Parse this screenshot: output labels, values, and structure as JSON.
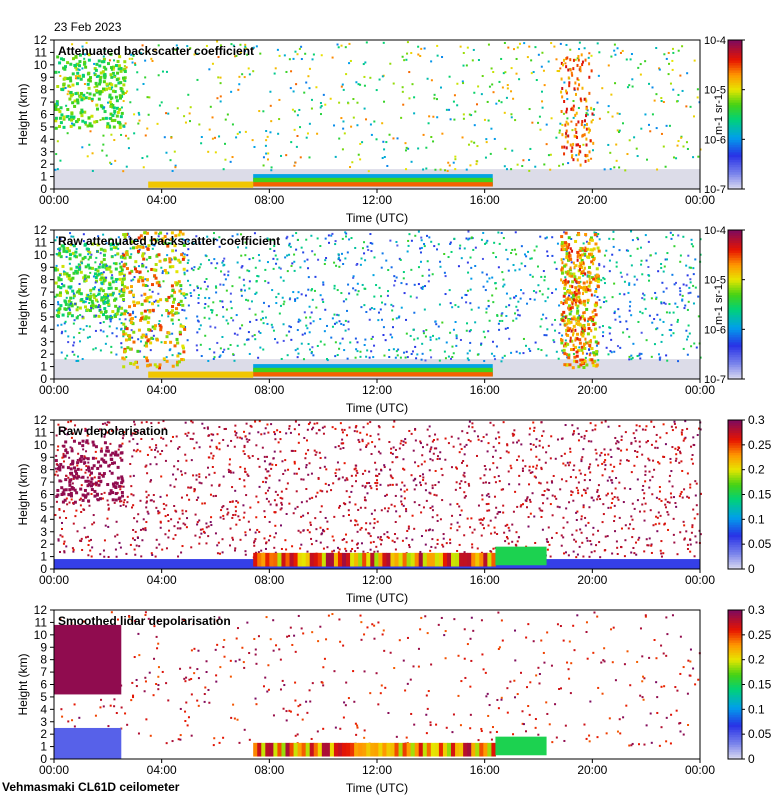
{
  "date_label": "23 Feb 2023",
  "footer": "Vehmasmaki CL61D ceilometer",
  "chart_data": [
    {
      "type": "heatmap",
      "title": "Attenuated backscatter coefficient",
      "xlabel": "Time (UTC)",
      "ylabel": "Height (km)",
      "x_ticks": [
        "00:00",
        "04:00",
        "08:00",
        "12:00",
        "16:00",
        "20:00",
        "00:00"
      ],
      "y_ticks": [
        "0",
        "1",
        "2",
        "3",
        "4",
        "5",
        "6",
        "7",
        "8",
        "9",
        "10",
        "11",
        "12"
      ],
      "ylim": [
        0,
        12
      ],
      "colorbar": {
        "scale": "log",
        "range": [
          1e-07,
          0.0001
        ],
        "ticks": [
          "10-7",
          "10-6",
          "10-5",
          "10-4"
        ],
        "unit": "m-1 sr-1",
        "colormap": "rainbow"
      }
    },
    {
      "type": "heatmap",
      "title": "Raw attenuated backscatter coefficient",
      "xlabel": "Time (UTC)",
      "ylabel": "Height (km)",
      "x_ticks": [
        "00:00",
        "04:00",
        "08:00",
        "12:00",
        "16:00",
        "20:00",
        "00:00"
      ],
      "y_ticks": [
        "0",
        "1",
        "2",
        "3",
        "4",
        "5",
        "6",
        "7",
        "8",
        "9",
        "10",
        "11",
        "12"
      ],
      "ylim": [
        0,
        12
      ],
      "colorbar": {
        "scale": "log",
        "range": [
          1e-07,
          0.0001
        ],
        "ticks": [
          "10-7",
          "10-6",
          "10-5",
          "10-4"
        ],
        "unit": "m-1 sr-1",
        "colormap": "rainbow"
      }
    },
    {
      "type": "heatmap",
      "title": "Raw depolarisation",
      "xlabel": "Time (UTC)",
      "ylabel": "Height (km)",
      "x_ticks": [
        "00:00",
        "04:00",
        "08:00",
        "12:00",
        "16:00",
        "20:00",
        "00:00"
      ],
      "y_ticks": [
        "0",
        "1",
        "2",
        "3",
        "4",
        "5",
        "6",
        "7",
        "8",
        "9",
        "10",
        "11",
        "12"
      ],
      "ylim": [
        0,
        12
      ],
      "colorbar": {
        "scale": "linear",
        "range": [
          0,
          0.3
        ],
        "ticks": [
          "0",
          "0.05",
          "0.1",
          "0.15",
          "0.2",
          "0.25",
          "0.3"
        ],
        "unit": "",
        "colormap": "rainbow"
      }
    },
    {
      "type": "heatmap",
      "title": "Smoothed lidar depolarisation",
      "xlabel": "Time (UTC)",
      "ylabel": "Height (km)",
      "x_ticks": [
        "00:00",
        "04:00",
        "08:00",
        "12:00",
        "16:00",
        "20:00",
        "00:00"
      ],
      "y_ticks": [
        "0",
        "1",
        "2",
        "3",
        "4",
        "5",
        "6",
        "7",
        "8",
        "9",
        "10",
        "11",
        "12"
      ],
      "ylim": [
        0,
        12
      ],
      "colorbar": {
        "scale": "linear",
        "range": [
          0,
          0.3
        ],
        "ticks": [
          "0",
          "0.05",
          "0.1",
          "0.15",
          "0.2",
          "0.25",
          "0.3"
        ],
        "unit": "",
        "colormap": "rainbow"
      }
    }
  ]
}
